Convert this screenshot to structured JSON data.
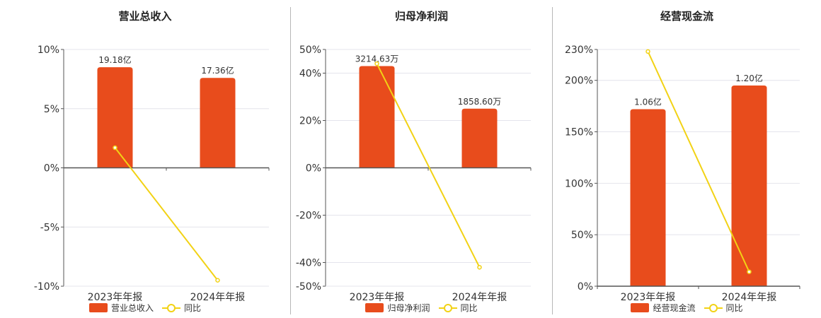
{
  "colors": {
    "bar": "#e84c1c",
    "line": "#f2d215",
    "axis": "#555555",
    "grid": "#e4e4ec"
  },
  "chart_data": [
    {
      "type": "bar",
      "title": "营业总收入",
      "categories": [
        "2023年年报",
        "2024年年报"
      ],
      "series": [
        {
          "name": "营业总收入",
          "type": "bar",
          "values": [
            8.5,
            7.6
          ],
          "labels": [
            "19.18亿",
            "17.36亿"
          ]
        },
        {
          "name": "同比",
          "type": "line",
          "values": [
            1.7,
            -9.5
          ]
        }
      ],
      "ylim": [
        -10,
        10
      ],
      "yticks": [
        10,
        5,
        0,
        -5,
        -10
      ],
      "ytick_labels": [
        "10%",
        "5%",
        "0%",
        "-5%",
        "-10%"
      ]
    },
    {
      "type": "bar",
      "title": "归母净利润",
      "categories": [
        "2023年年报",
        "2024年年报"
      ],
      "series": [
        {
          "name": "归母净利润",
          "type": "bar",
          "values": [
            43,
            25
          ],
          "labels": [
            "3214.63万",
            "1858.60万"
          ]
        },
        {
          "name": "同比",
          "type": "line",
          "values": [
            44,
            -42
          ]
        }
      ],
      "ylim": [
        -50,
        50
      ],
      "yticks": [
        50,
        40,
        20,
        0,
        -20,
        -40,
        -50
      ],
      "ytick_labels": [
        "50%",
        "40%",
        "20%",
        "0%",
        "-20%",
        "-40%",
        "-50%"
      ]
    },
    {
      "type": "bar",
      "title": "经营现金流",
      "categories": [
        "2023年年报",
        "2024年年报"
      ],
      "series": [
        {
          "name": "经营现金流",
          "type": "bar",
          "values": [
            172,
            195
          ],
          "labels": [
            "1.06亿",
            "1.20亿"
          ]
        },
        {
          "name": "同比",
          "type": "line",
          "values": [
            228,
            14
          ]
        }
      ],
      "ylim": [
        0,
        230
      ],
      "yticks": [
        230,
        200,
        150,
        100,
        50,
        0
      ],
      "ytick_labels": [
        "230%",
        "200%",
        "150%",
        "100%",
        "50%",
        "0%"
      ]
    }
  ]
}
